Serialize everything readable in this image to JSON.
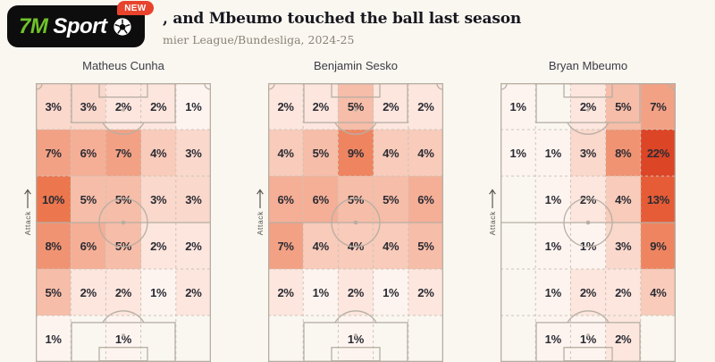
{
  "page": {
    "background": "#faf7f1",
    "title": ", and Mbeumo touched the ball last season",
    "subtitle": "mier League/Bundesliga, 2024-25"
  },
  "logo": {
    "text_7m": "7M",
    "text_sport": "Sport",
    "badge": "NEW",
    "ball_icon": "soccer-ball-icon",
    "colors": {
      "background": "#0d0d0d",
      "green": "#6fc22b",
      "text": "#ffffff",
      "badge": "#e8432c"
    }
  },
  "attack_label": "Attack",
  "heat_scale": {
    "unit": "%",
    "number_color": "#2b2b33",
    "colors": {
      "1": "#fdf4f0",
      "2": "#fce6de",
      "3": "#fad8cc",
      "4": "#f8cbba",
      "5": "#f6bda8",
      "6": "#f4af96",
      "7": "#f2a184",
      "8": "#f09372",
      "9": "#ee8560",
      "10": "#ec774e",
      "13": "#e65c36",
      "22": "#dc4526"
    }
  },
  "chart_data": [
    {
      "type": "heatmap",
      "title": "Matheus Cunha",
      "unit": "%",
      "rows": 6,
      "cols": 5,
      "orientation": "vertical-pitch-attack-up",
      "values": [
        [
          3,
          3,
          2,
          2,
          1
        ],
        [
          7,
          6,
          7,
          4,
          3
        ],
        [
          10,
          5,
          5,
          3,
          3
        ],
        [
          8,
          6,
          5,
          2,
          2
        ],
        [
          5,
          2,
          2,
          1,
          2
        ],
        [
          1,
          0,
          1,
          0,
          0
        ]
      ]
    },
    {
      "type": "heatmap",
      "title": "Benjamin Sesko",
      "unit": "%",
      "rows": 6,
      "cols": 5,
      "orientation": "vertical-pitch-attack-up",
      "values": [
        [
          2,
          2,
          5,
          2,
          2
        ],
        [
          4,
          5,
          9,
          4,
          4
        ],
        [
          6,
          6,
          5,
          5,
          6
        ],
        [
          7,
          4,
          4,
          4,
          5
        ],
        [
          2,
          1,
          2,
          1,
          2
        ],
        [
          0,
          0,
          1,
          0,
          0
        ]
      ]
    },
    {
      "type": "heatmap",
      "title": "Bryan Mbeumo",
      "unit": "%",
      "rows": 6,
      "cols": 5,
      "orientation": "vertical-pitch-attack-up",
      "values": [
        [
          1,
          0,
          2,
          5,
          7
        ],
        [
          1,
          1,
          3,
          8,
          22
        ],
        [
          0,
          1,
          2,
          4,
          13
        ],
        [
          0,
          1,
          1,
          3,
          9
        ],
        [
          0,
          1,
          2,
          2,
          4
        ],
        [
          0,
          1,
          1,
          2,
          0
        ]
      ]
    }
  ]
}
